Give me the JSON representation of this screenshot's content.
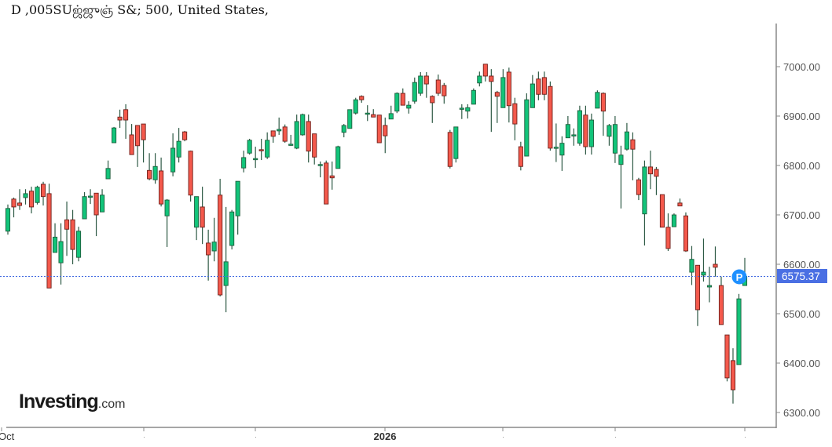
{
  "title": "D ,005SUஜ்ஜுஞ் S&; 500, United States,",
  "logo": {
    "main": "Investing",
    "domain": ".com"
  },
  "colors": {
    "up": "#12c47a",
    "down": "#f4594c",
    "up_border": "#1d5e3c",
    "down_border": "#6e1f1a",
    "wick": "#2e5a45",
    "price_line": "#4169e1",
    "price_label_bg": "#4a6fe3",
    "marker": "#1e90ff"
  },
  "chart_data": {
    "type": "candlestick",
    "title": "",
    "ylim": [
      6290,
      7080
    ],
    "yticks": [
      6300,
      6400,
      6500,
      6600,
      6700,
      6800,
      6900,
      7000
    ],
    "ytick_labels": [
      "6300.00",
      "6400.00",
      "6500.00",
      "6600.00",
      "6700.00",
      "6800.00",
      "6900.00",
      "7000.00"
    ],
    "xtick_labels": [
      "Oct",
      "",
      "",
      "2026",
      "",
      "",
      ""
    ],
    "last_price": 6575.37,
    "last_price_label": "6575.37",
    "marker_label": "P",
    "grid": false,
    "candles_ohlc": [
      [
        6667,
        6721,
        6660,
        6713
      ],
      [
        6732,
        6735,
        6695,
        6716
      ],
      [
        6724,
        6752,
        6710,
        6719
      ],
      [
        6735,
        6752,
        6721,
        6743
      ],
      [
        6748,
        6757,
        6703,
        6716
      ],
      [
        6725,
        6759,
        6721,
        6756
      ],
      [
        6762,
        6767,
        6719,
        6737
      ],
      [
        6743,
        6763,
        6552,
        6552
      ],
      [
        6624,
        6683,
        6624,
        6655
      ],
      [
        6603,
        6683,
        6559,
        6646
      ],
      [
        6690,
        6727,
        6617,
        6671
      ],
      [
        6690,
        6710,
        6600,
        6630
      ],
      [
        6614,
        6676,
        6606,
        6667
      ],
      [
        6692,
        6746,
        6692,
        6737
      ],
      [
        6738,
        6752,
        6722,
        6738
      ],
      [
        6744,
        6744,
        6657,
        6700
      ],
      [
        6706,
        6752,
        6706,
        6740
      ],
      [
        6773,
        6810,
        6773,
        6794
      ],
      [
        6846,
        6878,
        6846,
        6876
      ],
      [
        6898,
        6913,
        6876,
        6892
      ],
      [
        6913,
        6924,
        6854,
        6892
      ],
      [
        6862,
        6884,
        6822,
        6822
      ],
      [
        6881,
        6881,
        6797,
        6840
      ],
      [
        6884,
        6884,
        6806,
        6852
      ],
      [
        6790,
        6825,
        6770,
        6773
      ],
      [
        6771,
        6825,
        6763,
        6798
      ],
      [
        6789,
        6816,
        6717,
        6722
      ],
      [
        6698,
        6732,
        6635,
        6730
      ],
      [
        6787,
        6865,
        6778,
        6835
      ],
      [
        6817,
        6876,
        6806,
        6849
      ],
      [
        6868,
        6870,
        6849,
        6852
      ],
      [
        6829,
        6830,
        6727,
        6740
      ],
      [
        6675,
        6737,
        6649,
        6737
      ],
      [
        6716,
        6757,
        6641,
        6675
      ],
      [
        6643,
        6670,
        6567,
        6619
      ],
      [
        6627,
        6694,
        6606,
        6645
      ],
      [
        6740,
        6773,
        6535,
        6538
      ],
      [
        6557,
        6716,
        6503,
        6605
      ],
      [
        6638,
        6710,
        6630,
        6706
      ],
      [
        6698,
        6725,
        6660,
        6768
      ],
      [
        6795,
        6830,
        6786,
        6816
      ],
      [
        6825,
        6854,
        6822,
        6851
      ],
      [
        6814,
        6838,
        6795,
        6814
      ],
      [
        6832,
        6854,
        6811,
        6830
      ],
      [
        6817,
        6867,
        6813,
        6851
      ],
      [
        6870,
        6870,
        6846,
        6859
      ],
      [
        6870,
        6897,
        6862,
        6873
      ],
      [
        6878,
        6883,
        6846,
        6849
      ],
      [
        6843,
        6862,
        6840,
        6843
      ],
      [
        6835,
        6903,
        6833,
        6889
      ],
      [
        6862,
        6905,
        6860,
        6903
      ],
      [
        6889,
        6903,
        6806,
        6829
      ],
      [
        6864,
        6864,
        6802,
        6817
      ],
      [
        6802,
        6808,
        6776,
        6802
      ],
      [
        6805,
        6810,
        6722,
        6722
      ],
      [
        6779,
        6808,
        6751,
        6775
      ],
      [
        6794,
        6840,
        6794,
        6838
      ],
      [
        6867,
        6884,
        6857,
        6881
      ],
      [
        6875,
        6913,
        6875,
        6913
      ],
      [
        6906,
        6937,
        6903,
        6933
      ],
      [
        6940,
        6942,
        6927,
        6933
      ],
      [
        6906,
        6922,
        6890,
        6906
      ],
      [
        6903,
        6914,
        6898,
        6898
      ],
      [
        6902,
        6902,
        6846,
        6846
      ],
      [
        6881,
        6897,
        6825,
        6860
      ],
      [
        6894,
        6921,
        6894,
        6905
      ],
      [
        6910,
        6948,
        6906,
        6946
      ],
      [
        6946,
        6956,
        6924,
        6922
      ],
      [
        6916,
        6930,
        6905,
        6922
      ],
      [
        6930,
        6978,
        6925,
        6968
      ],
      [
        6946,
        6989,
        6941,
        6981
      ],
      [
        6981,
        6989,
        6937,
        6965
      ],
      [
        6940,
        6942,
        6886,
        6927
      ],
      [
        6973,
        6984,
        6941,
        6946
      ],
      [
        6962,
        6967,
        6925,
        6941
      ],
      [
        6867,
        6872,
        6794,
        6798
      ],
      [
        6814,
        6878,
        6806,
        6878
      ],
      [
        6916,
        6924,
        6894,
        6916
      ],
      [
        6910,
        6924,
        6895,
        6917
      ],
      [
        6924,
        6956,
        6924,
        6952
      ],
      [
        6967,
        6990,
        6960,
        6981
      ],
      [
        7005,
        7005,
        6970,
        6981
      ],
      [
        6981,
        6995,
        6868,
        6970
      ],
      [
        6948,
        6951,
        6886,
        6940
      ],
      [
        6917,
        6995,
        6917,
        6978
      ],
      [
        6989,
        6998,
        6887,
        6921
      ],
      [
        6925,
        6937,
        6851,
        6884
      ],
      [
        6838,
        6848,
        6790,
        6798
      ],
      [
        6819,
        6946,
        6819,
        6933
      ],
      [
        6917,
        6983,
        6917,
        6965
      ],
      [
        6975,
        6990,
        6932,
        6944
      ],
      [
        6978,
        6990,
        6932,
        6944
      ],
      [
        6960,
        6970,
        6830,
        6835
      ],
      [
        6837,
        6885,
        6807,
        6837
      ],
      [
        6821,
        6859,
        6789,
        6845
      ],
      [
        6856,
        6900,
        6856,
        6883
      ],
      [
        6862,
        6875,
        6840,
        6862
      ],
      [
        6845,
        6921,
        6840,
        6911
      ],
      [
        6902,
        6921,
        6822,
        6838
      ],
      [
        6838,
        6905,
        6822,
        6892
      ],
      [
        6916,
        6952,
        6916,
        6948
      ],
      [
        6946,
        6948,
        6860,
        6910
      ],
      [
        6859,
        6884,
        6840,
        6881
      ],
      [
        6825,
        6900,
        6805,
        6883
      ],
      [
        6802,
        6840,
        6713,
        6821
      ],
      [
        6833,
        6886,
        6830,
        6868
      ],
      [
        6852,
        6867,
        6770,
        6833
      ],
      [
        6771,
        6775,
        6730,
        6741
      ],
      [
        6702,
        6810,
        6638,
        6797
      ],
      [
        6797,
        6830,
        6752,
        6783
      ],
      [
        6792,
        6797,
        6740,
        6778
      ],
      [
        6741,
        6741,
        6675,
        6675
      ],
      [
        6675,
        6703,
        6627,
        6632
      ],
      [
        6676,
        6703,
        6676,
        6700
      ],
      [
        6724,
        6733,
        6719,
        6718
      ],
      [
        6698,
        6705,
        6625,
        6627
      ],
      [
        6584,
        6637,
        6558,
        6610
      ],
      [
        6598,
        6598,
        6475,
        6508
      ],
      [
        6578,
        6652,
        6565,
        6584
      ],
      [
        6554,
        6595,
        6523,
        6557
      ],
      [
        6600,
        6636,
        6575,
        6594
      ],
      [
        6557,
        6575,
        6478,
        6478
      ],
      [
        6457,
        6457,
        6363,
        6370
      ],
      [
        6405,
        6430,
        6318,
        6346
      ],
      [
        6397,
        6540,
        6397,
        6530
      ],
      [
        6557,
        6613,
        6557,
        6575.37
      ]
    ]
  }
}
